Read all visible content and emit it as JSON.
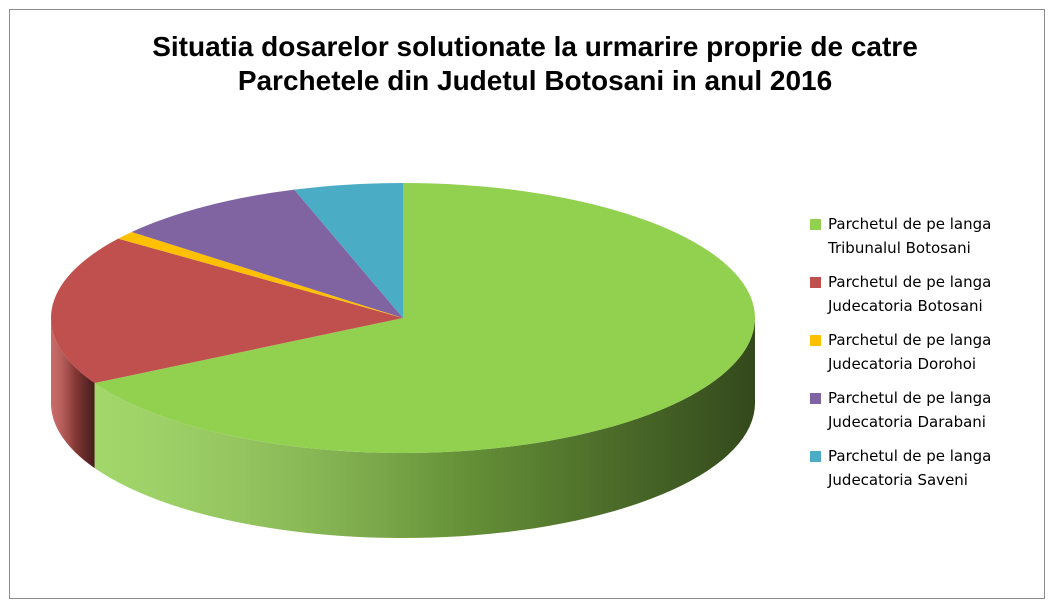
{
  "chart_data": {
    "type": "pie3d",
    "title": "Situatia dosarelor solutionate la urmarire proprie de catre Parchetele din Judetul Botosani in anul 2016",
    "categories": [
      "Parchetul de pe langa Tribunalul Botosani",
      "Parchetul de pe langa Judecatoria Botosani",
      "Parchetul de pe langa Judecatoria Dorohoi",
      "Parchetul de pe langa Judecatoria Darabani",
      "Parchetul de pe langa Judecatoria Saveni"
    ],
    "values": [
      67,
      18,
      1,
      9,
      5
    ],
    "colors": [
      "#92d050",
      "#c0504d",
      "#ffc000",
      "#8064a2",
      "#4bacc6"
    ],
    "legend": "right"
  }
}
